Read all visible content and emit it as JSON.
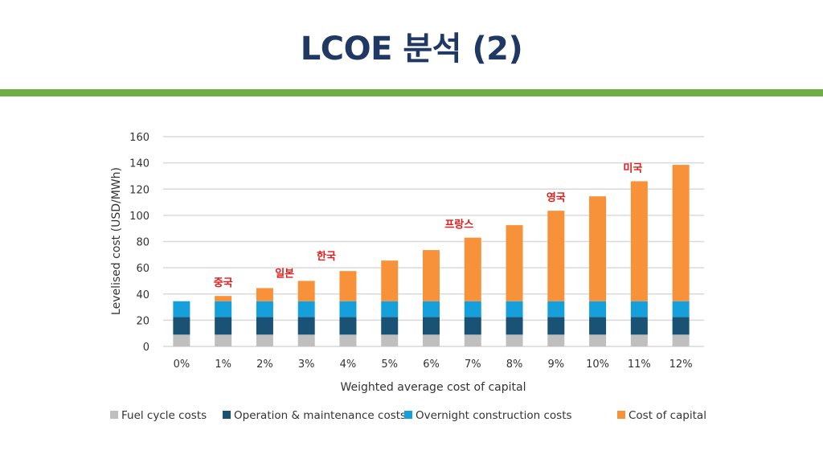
{
  "slide": {
    "title": "LCOE 분석 (2)",
    "accent_color": "#70ad47",
    "title_color": "#1f3864"
  },
  "chart_data": {
    "type": "bar",
    "stacked": true,
    "title": "",
    "xlabel": "Weighted average cost of capital",
    "ylabel": "Levelised cost (USD/MWh)",
    "ylim": [
      0,
      160
    ],
    "yticks": [
      0,
      20,
      40,
      60,
      80,
      100,
      120,
      140,
      160
    ],
    "grid": true,
    "legend_position": "bottom",
    "categories": [
      "0%",
      "1%",
      "2%",
      "3%",
      "4%",
      "5%",
      "6%",
      "7%",
      "8%",
      "9%",
      "10%",
      "11%",
      "12%"
    ],
    "series": [
      {
        "name": "Fuel cycle costs",
        "color": "#bfbfbf",
        "values": [
          9,
          9,
          9,
          9,
          9,
          9,
          9,
          9,
          9,
          9,
          9,
          9,
          9
        ]
      },
      {
        "name": "Operation & maintenance costs",
        "color": "#1a5276",
        "values": [
          13.5,
          13.5,
          13.5,
          13.5,
          13.5,
          13.5,
          13.5,
          13.5,
          13.5,
          13.5,
          13.5,
          13.5,
          13.5
        ]
      },
      {
        "name": "Overnight construction costs",
        "color": "#15a0db",
        "values": [
          12,
          12,
          12,
          12,
          12,
          12,
          12,
          12,
          12,
          12,
          12,
          12,
          12
        ]
      },
      {
        "name": "Cost of capital",
        "color": "#f7923a",
        "values": [
          0,
          4,
          10,
          15.5,
          23,
          31,
          39,
          48.5,
          58,
          69,
          80,
          91.5,
          104
        ]
      }
    ],
    "annotations": [
      {
        "text": "중국",
        "category": "1%"
      },
      {
        "text": "일본",
        "category": "3%"
      },
      {
        "text": "한국",
        "category": "4%"
      },
      {
        "text": "프랑스",
        "category": "7%"
      },
      {
        "text": "영국",
        "category": "9%"
      },
      {
        "text": "미국",
        "category": "11%"
      }
    ]
  }
}
